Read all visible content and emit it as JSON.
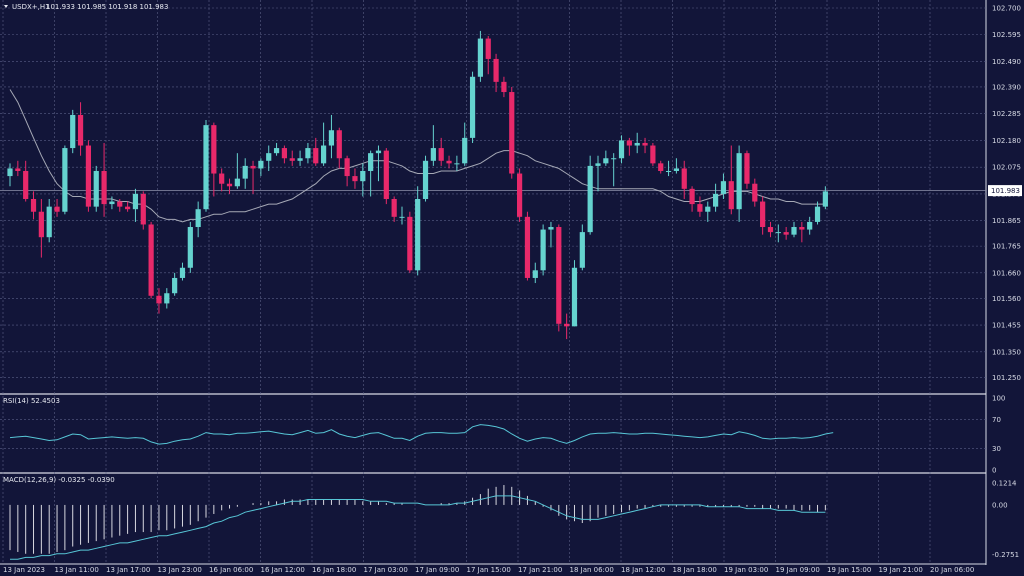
{
  "header": {
    "symbol": "USDX+,H1",
    "ohlc": "101.933 101.985 101.918 101.983"
  },
  "rsi_header": "RSI(14) 52.4503",
  "macd_header": "MACD(12,26,9) -0.0325 -0.0390",
  "price_badge": "101.983",
  "colors": {
    "background": "#121539",
    "grid": "#5a5f86",
    "bull": "#65d3cf",
    "bear": "#e8296a",
    "ma": "#a6a9b6",
    "indicator": "#57c6d6",
    "histogram": "#d8d8e0"
  },
  "chart_data": [
    {
      "type": "candlestick",
      "title": "USDX+,H1",
      "ylim": [
        101.2,
        102.7
      ],
      "yticks": [
        "102.700",
        "102.595",
        "102.490",
        "102.390",
        "102.285",
        "102.180",
        "102.075",
        "101.970",
        "101.865",
        "101.765",
        "101.660",
        "101.560",
        "101.455",
        "101.350",
        "101.250"
      ],
      "xticks": [
        "13 Jan 2023",
        "13 Jan 11:00",
        "13 Jan 17:00",
        "13 Jan 23:00",
        "16 Jan 06:00",
        "16 Jan 12:00",
        "16 Jan 18:00",
        "17 Jan 03:00",
        "17 Jan 09:00",
        "17 Jan 15:00",
        "17 Jan 21:00",
        "18 Jan 06:00",
        "18 Jan 12:00",
        "18 Jan 18:00",
        "19 Jan 03:00",
        "19 Jan 09:00",
        "19 Jan 15:00",
        "19 Jan 21:00",
        "20 Jan 06:00"
      ],
      "current_price": 101.983,
      "candles": [
        [
          102.04,
          102.07,
          102.0,
          102.09
        ],
        [
          102.07,
          102.06,
          102.04,
          102.1
        ],
        [
          102.06,
          101.95,
          101.94,
          102.1
        ],
        [
          101.95,
          101.9,
          101.87,
          101.98
        ],
        [
          101.9,
          101.8,
          101.72,
          101.95
        ],
        [
          101.8,
          101.92,
          101.78,
          101.95
        ],
        [
          101.92,
          101.9,
          101.88,
          101.95
        ],
        [
          101.9,
          102.15,
          101.89,
          102.16
        ],
        [
          102.15,
          102.28,
          102.13,
          102.3
        ],
        [
          102.28,
          102.16,
          102.12,
          102.33
        ],
        [
          102.16,
          101.92,
          101.9,
          102.18
        ],
        [
          101.92,
          102.06,
          101.9,
          102.08
        ],
        [
          102.06,
          101.93,
          101.88,
          102.17
        ],
        [
          101.93,
          101.94,
          101.91,
          101.96
        ],
        [
          101.94,
          101.92,
          101.9,
          101.95
        ],
        [
          101.92,
          101.91,
          101.9,
          101.94
        ],
        [
          101.91,
          101.97,
          101.86,
          101.99
        ],
        [
          101.97,
          101.85,
          101.83,
          101.98
        ],
        [
          101.85,
          101.57,
          101.56,
          101.86
        ],
        [
          101.57,
          101.54,
          101.5,
          101.6
        ],
        [
          101.54,
          101.58,
          101.52,
          101.6
        ],
        [
          101.58,
          101.64,
          101.57,
          101.66
        ],
        [
          101.64,
          101.68,
          101.63,
          101.7
        ],
        [
          101.68,
          101.84,
          101.66,
          101.86
        ],
        [
          101.84,
          101.91,
          101.8,
          101.94
        ],
        [
          101.91,
          102.24,
          101.9,
          102.26
        ],
        [
          102.24,
          102.05,
          101.96,
          102.25
        ],
        [
          102.05,
          102.01,
          101.98,
          102.07
        ],
        [
          102.01,
          102.0,
          101.97,
          102.03
        ],
        [
          102.0,
          102.03,
          101.99,
          102.13
        ],
        [
          102.03,
          102.08,
          101.99,
          102.11
        ],
        [
          102.08,
          102.07,
          101.97,
          102.1
        ],
        [
          102.07,
          102.1,
          102.04,
          102.11
        ],
        [
          102.1,
          102.13,
          102.06,
          102.16
        ],
        [
          102.13,
          102.15,
          102.12,
          102.17
        ],
        [
          102.15,
          102.11,
          102.09,
          102.16
        ],
        [
          102.11,
          102.1,
          102.08,
          102.14
        ],
        [
          102.1,
          102.11,
          102.08,
          102.14
        ],
        [
          102.11,
          102.15,
          102.09,
          102.17
        ],
        [
          102.15,
          102.09,
          102.08,
          102.19
        ],
        [
          102.09,
          102.16,
          102.08,
          102.25
        ],
        [
          102.16,
          102.22,
          102.11,
          102.28
        ],
        [
          102.22,
          102.11,
          102.07,
          102.23
        ],
        [
          102.11,
          102.04,
          102.0,
          102.12
        ],
        [
          102.04,
          102.02,
          101.99,
          102.07
        ],
        [
          102.02,
          102.06,
          101.96,
          102.09
        ],
        [
          102.06,
          102.13,
          101.96,
          102.14
        ],
        [
          102.13,
          102.14,
          102.02,
          102.16
        ],
        [
          102.14,
          101.95,
          101.93,
          102.15
        ],
        [
          101.95,
          101.88,
          101.86,
          101.96
        ],
        [
          101.88,
          101.88,
          101.85,
          101.92
        ],
        [
          101.88,
          101.67,
          101.66,
          101.9
        ],
        [
          101.67,
          101.95,
          101.65,
          102.0
        ],
        [
          101.95,
          102.1,
          101.94,
          102.12
        ],
        [
          102.1,
          102.15,
          102.08,
          102.24
        ],
        [
          102.15,
          102.1,
          102.08,
          102.19
        ],
        [
          102.1,
          102.09,
          102.07,
          102.12
        ],
        [
          102.09,
          102.09,
          102.06,
          102.12
        ],
        [
          102.09,
          102.19,
          102.08,
          102.25
        ],
        [
          102.19,
          102.43,
          102.17,
          102.45
        ],
        [
          102.43,
          102.58,
          102.41,
          102.61
        ],
        [
          102.58,
          102.5,
          102.44,
          102.59
        ],
        [
          102.5,
          102.41,
          102.37,
          102.52
        ],
        [
          102.41,
          102.37,
          102.35,
          102.43
        ],
        [
          102.37,
          102.05,
          102.03,
          102.39
        ],
        [
          102.05,
          101.88,
          101.86,
          102.07
        ],
        [
          101.88,
          101.64,
          101.63,
          101.9
        ],
        [
          101.64,
          101.67,
          101.62,
          101.7
        ],
        [
          101.67,
          101.83,
          101.65,
          101.85
        ],
        [
          101.83,
          101.84,
          101.76,
          101.86
        ],
        [
          101.84,
          101.46,
          101.43,
          101.85
        ],
        [
          101.46,
          101.45,
          101.4,
          101.5
        ],
        [
          101.45,
          101.68,
          101.45,
          101.71
        ],
        [
          101.68,
          101.82,
          101.67,
          101.85
        ],
        [
          101.82,
          102.08,
          101.81,
          102.12
        ],
        [
          102.08,
          102.09,
          101.98,
          102.12
        ],
        [
          102.09,
          102.11,
          102.08,
          102.14
        ],
        [
          102.11,
          102.11,
          102.0,
          102.13
        ],
        [
          102.11,
          102.18,
          102.09,
          102.2
        ],
        [
          102.18,
          102.16,
          102.12,
          102.19
        ],
        [
          102.16,
          102.17,
          102.13,
          102.21
        ],
        [
          102.17,
          102.16,
          102.13,
          102.19
        ],
        [
          102.16,
          102.09,
          102.08,
          102.17
        ],
        [
          102.09,
          102.06,
          102.05,
          102.1
        ],
        [
          102.06,
          102.06,
          102.04,
          102.1
        ],
        [
          102.06,
          102.07,
          102.05,
          102.11
        ],
        [
          102.07,
          101.99,
          101.95,
          102.1
        ],
        [
          101.99,
          101.93,
          101.9,
          102.0
        ],
        [
          101.93,
          101.9,
          101.88,
          101.96
        ],
        [
          101.9,
          101.92,
          101.86,
          101.94
        ],
        [
          101.92,
          101.97,
          101.9,
          102.01
        ],
        [
          101.97,
          102.02,
          101.95,
          102.05
        ],
        [
          102.02,
          101.91,
          101.89,
          102.16
        ],
        [
          101.91,
          102.13,
          101.86,
          102.16
        ],
        [
          102.13,
          102.01,
          101.99,
          102.14
        ],
        [
          102.01,
          101.94,
          101.92,
          102.03
        ],
        [
          101.94,
          101.84,
          101.81,
          101.96
        ],
        [
          101.84,
          101.82,
          101.8,
          101.86
        ],
        [
          101.82,
          101.82,
          101.78,
          101.85
        ],
        [
          101.82,
          101.81,
          101.79,
          101.84
        ],
        [
          101.81,
          101.84,
          101.8,
          101.86
        ],
        [
          101.84,
          101.83,
          101.78,
          101.86
        ],
        [
          101.83,
          101.86,
          101.81,
          101.88
        ],
        [
          101.86,
          101.92,
          101.85,
          101.94
        ],
        [
          101.92,
          101.98,
          101.91,
          102.0
        ]
      ],
      "ma_line": [
        102.38,
        102.33,
        102.26,
        102.19,
        102.12,
        102.06,
        102.01,
        101.98,
        101.96,
        101.96,
        101.95,
        101.95,
        101.95,
        101.95,
        101.94,
        101.94,
        101.93,
        101.93,
        101.91,
        101.88,
        101.87,
        101.87,
        101.86,
        101.87,
        101.87,
        101.88,
        101.89,
        101.89,
        101.9,
        101.9,
        101.9,
        101.91,
        101.92,
        101.93,
        101.93,
        101.94,
        101.95,
        101.97,
        101.99,
        102.01,
        102.04,
        102.06,
        102.07,
        102.07,
        102.08,
        102.09,
        102.1,
        102.1,
        102.1,
        102.09,
        102.08,
        102.06,
        102.05,
        102.05,
        102.05,
        102.06,
        102.06,
        102.06,
        102.07,
        102.08,
        102.09,
        102.11,
        102.13,
        102.14,
        102.14,
        102.13,
        102.12,
        102.1,
        102.09,
        102.08,
        102.07,
        102.05,
        102.03,
        102.01,
        102.0,
        101.99,
        101.99,
        101.99,
        101.99,
        101.99,
        101.99,
        101.99,
        101.99,
        101.98,
        101.96,
        101.95,
        101.94,
        101.94,
        101.94,
        101.95,
        101.96,
        101.97,
        101.98,
        101.98,
        101.98,
        101.97,
        101.96,
        101.95,
        101.95,
        101.94,
        101.94,
        101.93,
        101.93,
        101.93,
        101.93
      ]
    },
    {
      "type": "line",
      "title": "RSI(14) 52.4503",
      "ylim": [
        0,
        100
      ],
      "yticks": [
        "100",
        "70",
        "30",
        "0"
      ],
      "values": [
        45,
        46,
        47,
        45,
        43,
        41,
        42,
        46,
        50,
        49,
        43,
        44,
        45,
        46,
        45,
        44,
        45,
        44,
        39,
        36,
        37,
        40,
        42,
        43,
        47,
        52,
        50,
        50,
        49,
        51,
        51,
        52,
        53,
        54,
        52,
        50,
        49,
        52,
        55,
        51,
        52,
        56,
        50,
        47,
        45,
        48,
        51,
        52,
        48,
        44,
        44,
        41,
        47,
        51,
        52,
        52,
        51,
        51,
        52,
        60,
        63,
        62,
        60,
        57,
        50,
        44,
        40,
        43,
        45,
        44,
        40,
        37,
        41,
        46,
        50,
        51,
        51,
        52,
        51,
        50,
        50,
        51,
        51,
        50,
        49,
        48,
        47,
        46,
        45,
        46,
        48,
        50,
        49,
        53,
        51,
        48,
        44,
        43,
        44,
        44,
        45,
        44,
        45,
        47,
        50,
        52
      ]
    },
    {
      "type": "bar+line",
      "title": "MACD(12,26,9) -0.0325 -0.0390",
      "ylim": [
        -0.31,
        0.16
      ],
      "yticks": [
        "0.1214",
        "0.00",
        "-0.2751"
      ],
      "histogram": [
        -0.25,
        -0.26,
        -0.27,
        -0.27,
        -0.27,
        -0.27,
        -0.26,
        -0.25,
        -0.23,
        -0.22,
        -0.21,
        -0.2,
        -0.19,
        -0.18,
        -0.17,
        -0.16,
        -0.15,
        -0.15,
        -0.15,
        -0.14,
        -0.14,
        -0.13,
        -0.12,
        -0.11,
        -0.09,
        -0.07,
        -0.05,
        -0.03,
        -0.02,
        -0.01,
        0.0,
        0.01,
        0.01,
        0.02,
        0.02,
        0.03,
        0.03,
        0.03,
        0.03,
        0.03,
        0.03,
        0.03,
        0.03,
        0.03,
        0.03,
        0.02,
        0.02,
        0.02,
        0.01,
        0.01,
        0.01,
        0.0,
        0.0,
        0.0,
        0.0,
        0.01,
        0.01,
        0.01,
        0.02,
        0.04,
        0.06,
        0.09,
        0.1,
        0.11,
        0.1,
        0.08,
        0.05,
        0.02,
        -0.01,
        -0.03,
        -0.06,
        -0.08,
        -0.09,
        -0.1,
        -0.09,
        -0.07,
        -0.06,
        -0.05,
        -0.04,
        -0.03,
        -0.02,
        -0.02,
        -0.01,
        -0.01,
        -0.01,
        -0.01,
        -0.01,
        -0.01,
        -0.01,
        -0.01,
        -0.01,
        -0.01,
        -0.01,
        -0.01,
        -0.01,
        -0.01,
        -0.02,
        -0.02,
        -0.02,
        -0.02,
        -0.03,
        -0.03,
        -0.03,
        -0.04,
        -0.03
      ],
      "signal": [
        -0.3,
        -0.3,
        -0.29,
        -0.29,
        -0.28,
        -0.28,
        -0.27,
        -0.27,
        -0.26,
        -0.25,
        -0.25,
        -0.24,
        -0.23,
        -0.22,
        -0.21,
        -0.21,
        -0.2,
        -0.19,
        -0.18,
        -0.17,
        -0.17,
        -0.16,
        -0.15,
        -0.14,
        -0.13,
        -0.12,
        -0.1,
        -0.09,
        -0.07,
        -0.06,
        -0.04,
        -0.03,
        -0.02,
        -0.01,
        0.0,
        0.01,
        0.02,
        0.02,
        0.03,
        0.03,
        0.03,
        0.03,
        0.03,
        0.03,
        0.03,
        0.03,
        0.02,
        0.02,
        0.02,
        0.01,
        0.01,
        0.01,
        0.01,
        0.0,
        0.0,
        0.0,
        0.0,
        0.01,
        0.01,
        0.02,
        0.03,
        0.04,
        0.05,
        0.05,
        0.05,
        0.04,
        0.03,
        0.02,
        0.0,
        -0.02,
        -0.04,
        -0.06,
        -0.07,
        -0.08,
        -0.08,
        -0.08,
        -0.07,
        -0.06,
        -0.05,
        -0.04,
        -0.03,
        -0.02,
        -0.01,
        0.0,
        0.0,
        0.0,
        0.0,
        0.0,
        0.0,
        -0.01,
        -0.01,
        -0.01,
        -0.01,
        -0.01,
        -0.02,
        -0.02,
        -0.02,
        -0.02,
        -0.03,
        -0.03,
        -0.03,
        -0.04,
        -0.04,
        -0.04,
        -0.04
      ]
    }
  ]
}
